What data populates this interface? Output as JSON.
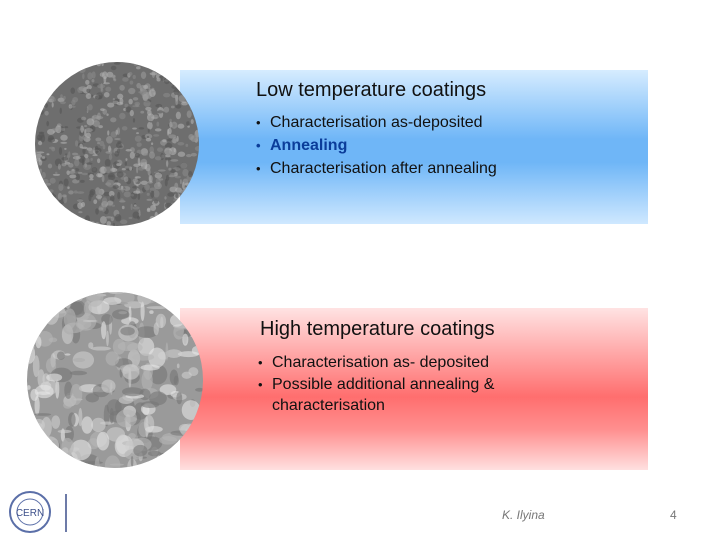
{
  "sections": [
    {
      "title": "Low temperature coatings",
      "bullets": [
        "Characterisation as-deposited",
        "Annealing",
        "Characterisation after annealing"
      ]
    },
    {
      "title": "High temperature coatings",
      "bullets": [
        "Characterisation as- deposited",
        "Possible additional annealing & characterisation"
      ]
    }
  ],
  "footer": {
    "author": "K. Ilyina",
    "page": "4",
    "logo": "CERN"
  }
}
